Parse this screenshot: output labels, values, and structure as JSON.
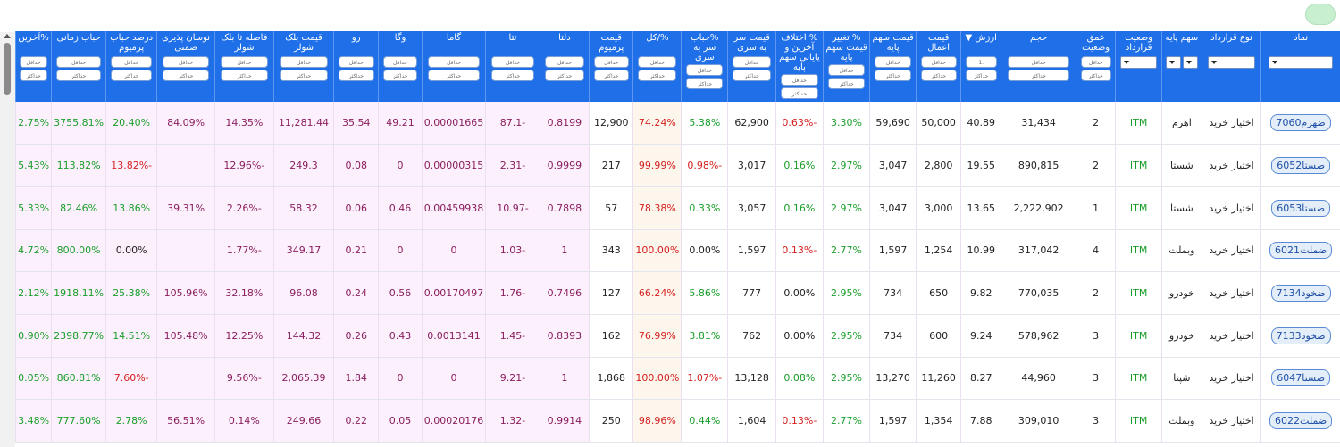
{
  "top_button_label": "",
  "columns": [
    {
      "key": "symbol",
      "label": "نماد",
      "filter": "select-wide",
      "w": 90
    },
    {
      "key": "type",
      "label": "نوع قرارداد",
      "filter": "select-wide",
      "w": 68
    },
    {
      "key": "base",
      "label": "سهم پایه",
      "filter": "select-pair",
      "w": 46
    },
    {
      "key": "status",
      "label": "وضعیت قرارداد",
      "filter": "select-wide",
      "w": 54
    },
    {
      "key": "depth",
      "label": "عمق وضعیت",
      "filter": "minmax",
      "w": 45
    },
    {
      "key": "volume",
      "label": "حجم",
      "filter": "minmax",
      "w": 87
    },
    {
      "key": "value",
      "label": "ارزش ▼",
      "filter": "minmax-value",
      "w": 46
    },
    {
      "key": "strike",
      "label": "قیمت اعمال",
      "filter": "minmax",
      "w": 51
    },
    {
      "key": "base_price",
      "label": "قیمت سهم پایه",
      "filter": "minmax",
      "w": 53
    },
    {
      "key": "base_change",
      "label": "% تغییر قیمت سهم پایه",
      "filter": "minmax",
      "w": 54
    },
    {
      "key": "diff_last",
      "label": "% اختلاف آخرین و پایانی سهم پایه",
      "filter": "minmax",
      "w": 54
    },
    {
      "key": "breakeven",
      "label": "قیمت سر به سری",
      "filter": "minmax",
      "w": 55
    },
    {
      "key": "breakeven_pct",
      "label": "%حباب سر به سری",
      "filter": "minmax",
      "w": 53
    },
    {
      "key": "pct_total",
      "label": "%/کل",
      "filter": "minmax",
      "w": 53
    },
    {
      "key": "premium",
      "label": "قیمت پرمیوم",
      "filter": "minmax",
      "w": 50
    },
    {
      "key": "delta",
      "label": "دلتا",
      "filter": "minmax",
      "w": 57
    },
    {
      "key": "theta",
      "label": "تتا",
      "filter": "minmax",
      "w": 63
    },
    {
      "key": "gamma",
      "label": "گاما",
      "filter": "minmax",
      "w": 68
    },
    {
      "key": "vega",
      "label": "وگا",
      "filter": "minmax",
      "w": 50
    },
    {
      "key": "rho",
      "label": "رو",
      "filter": "minmax",
      "w": 52
    },
    {
      "key": "bs_price",
      "label": "قیمت بلک شولز",
      "filter": "minmax",
      "w": 68
    },
    {
      "key": "bs_distance",
      "label": "فاصله تا بلک شولز",
      "filter": "minmax",
      "w": 68
    },
    {
      "key": "iv",
      "label": "نوسان پذیری ضمنی",
      "filter": "minmax",
      "w": 66
    },
    {
      "key": "premium_bubble",
      "label": "درصد حباب پرمیوم",
      "filter": "minmax",
      "w": 58
    },
    {
      "key": "time_bubble",
      "label": "حباب زمانی",
      "filter": "minmax",
      "w": 60
    },
    {
      "key": "last",
      "label": "%آخرین",
      "filter": "minmax",
      "w": 38
    }
  ],
  "filter_labels": {
    "min": "حداقل",
    "max": "حداکثر",
    "value_min": ".1"
  },
  "rows": [
    {
      "symbol": "ضهرم7060",
      "type": "اختیار خرید",
      "base": "اهرم",
      "status": "ITM",
      "depth": "2",
      "volume": "31,434",
      "value": "40.89",
      "strike": "50,000",
      "base_price": "59,690",
      "base_change": "3.30%",
      "diff_last": "-0.63%",
      "breakeven": "62,900",
      "breakeven_pct": "5.38%",
      "pct_total": "74.24%",
      "premium": "12,900",
      "delta": "0.8199",
      "theta": "-87.1",
      "gamma": "0.00001665",
      "vega": "49.21",
      "rho": "35.54",
      "bs_price": "11,281.44",
      "bs_distance": "14.35%",
      "iv": "84.09%",
      "premium_bubble": "20.40%",
      "time_bubble": "3755.81%",
      "last": "2.75%"
    },
    {
      "symbol": "ضستا6052",
      "type": "اختیار خرید",
      "base": "شستا",
      "status": "ITM",
      "depth": "2",
      "volume": "890,815",
      "value": "19.55",
      "strike": "2,800",
      "base_price": "3,047",
      "base_change": "2.97%",
      "diff_last": "0.16%",
      "breakeven": "3,017",
      "breakeven_pct": "-0.98%",
      "pct_total": "99.99%",
      "premium": "217",
      "delta": "0.9999",
      "theta": "-2.31",
      "gamma": "0.00000315",
      "vega": "0",
      "rho": "0.08",
      "bs_price": "249.3",
      "bs_distance": "-12.96%",
      "iv": "",
      "premium_bubble": "-13.82%",
      "time_bubble": "113.82%",
      "last": "5.43%"
    },
    {
      "symbol": "ضستا6053",
      "type": "اختیار خرید",
      "base": "شستا",
      "status": "ITM",
      "depth": "1",
      "volume": "2,222,902",
      "value": "13.65",
      "strike": "3,000",
      "base_price": "3,047",
      "base_change": "2.97%",
      "diff_last": "0.16%",
      "breakeven": "3,057",
      "breakeven_pct": "0.33%",
      "pct_total": "78.38%",
      "premium": "57",
      "delta": "0.7898",
      "theta": "-10.97",
      "gamma": "0.00459938",
      "vega": "0.46",
      "rho": "0.06",
      "bs_price": "58.32",
      "bs_distance": "-2.26%",
      "iv": "39.31%",
      "premium_bubble": "13.86%",
      "time_bubble": "82.46%",
      "last": "5.33%"
    },
    {
      "symbol": "ضملت6021",
      "type": "اختیار خرید",
      "base": "وبملت",
      "status": "ITM",
      "depth": "4",
      "volume": "317,042",
      "value": "10.99",
      "strike": "1,254",
      "base_price": "1,597",
      "base_change": "2.77%",
      "diff_last": "-0.13%",
      "breakeven": "1,597",
      "breakeven_pct": "0.00%",
      "pct_total": "100.00%",
      "premium": "343",
      "delta": "1",
      "theta": "-1.03",
      "gamma": "0",
      "vega": "0",
      "rho": "0.21",
      "bs_price": "349.17",
      "bs_distance": "-1.77%",
      "iv": "",
      "premium_bubble": "0.00%",
      "time_bubble": "800.00%",
      "last": "4.72%"
    },
    {
      "symbol": "ضخود7134",
      "type": "اختیار خرید",
      "base": "خودرو",
      "status": "ITM",
      "depth": "2",
      "volume": "770,035",
      "value": "9.82",
      "strike": "650",
      "base_price": "734",
      "base_change": "2.95%",
      "diff_last": "0.00%",
      "breakeven": "777",
      "breakeven_pct": "5.86%",
      "pct_total": "66.24%",
      "premium": "127",
      "delta": "0.7496",
      "theta": "-1.76",
      "gamma": "0.00170497",
      "vega": "0.56",
      "rho": "0.24",
      "bs_price": "96.08",
      "bs_distance": "32.18%",
      "iv": "105.96%",
      "premium_bubble": "25.38%",
      "time_bubble": "1918.11%",
      "last": "2.12%"
    },
    {
      "symbol": "ضخود7133",
      "type": "اختیار خرید",
      "base": "خودرو",
      "status": "ITM",
      "depth": "3",
      "volume": "578,962",
      "value": "9.24",
      "strike": "600",
      "base_price": "734",
      "base_change": "2.95%",
      "diff_last": "0.00%",
      "breakeven": "762",
      "breakeven_pct": "3.81%",
      "pct_total": "76.99%",
      "premium": "162",
      "delta": "0.8393",
      "theta": "-1.45",
      "gamma": "0.0013141",
      "vega": "0.43",
      "rho": "0.26",
      "bs_price": "144.32",
      "bs_distance": "12.25%",
      "iv": "105.48%",
      "premium_bubble": "14.51%",
      "time_bubble": "2398.77%",
      "last": "0.90%"
    },
    {
      "symbol": "ضسنا6047",
      "type": "اختیار خرید",
      "base": "شپنا",
      "status": "ITM",
      "depth": "3",
      "volume": "44,960",
      "value": "8.27",
      "strike": "11,260",
      "base_price": "13,270",
      "base_change": "2.95%",
      "diff_last": "0.08%",
      "breakeven": "13,128",
      "breakeven_pct": "-1.07%",
      "pct_total": "100.00%",
      "premium": "1,868",
      "delta": "1",
      "theta": "-9.21",
      "gamma": "0",
      "vega": "0",
      "rho": "1.84",
      "bs_price": "2,065.39",
      "bs_distance": "-9.56%",
      "iv": "",
      "premium_bubble": "-7.60%",
      "time_bubble": "860.81%",
      "last": "0.05%"
    },
    {
      "symbol": "ضملت6022",
      "type": "اختیار خرید",
      "base": "وبملت",
      "status": "ITM",
      "depth": "3",
      "volume": "309,010",
      "value": "7.88",
      "strike": "1,354",
      "base_price": "1,597",
      "base_change": "2.77%",
      "diff_last": "-0.13%",
      "breakeven": "1,604",
      "breakeven_pct": "0.44%",
      "pct_total": "98.96%",
      "premium": "250",
      "delta": "0.9914",
      "theta": "-1.32",
      "gamma": "0.00020176",
      "vega": "0.05",
      "rho": "0.22",
      "bs_price": "249.66",
      "bs_distance": "0.14%",
      "iv": "56.51%",
      "premium_bubble": "2.78%",
      "time_bubble": "777.60%",
      "last": "3.48%"
    }
  ],
  "colors": {
    "header": "#1e6fe8",
    "pink_cell": "#fcf0fc",
    "peach_cell": "#fdf6ec",
    "positive": "#1a9e2a",
    "negative": "#d42020",
    "purple": "#8a1e5e"
  }
}
